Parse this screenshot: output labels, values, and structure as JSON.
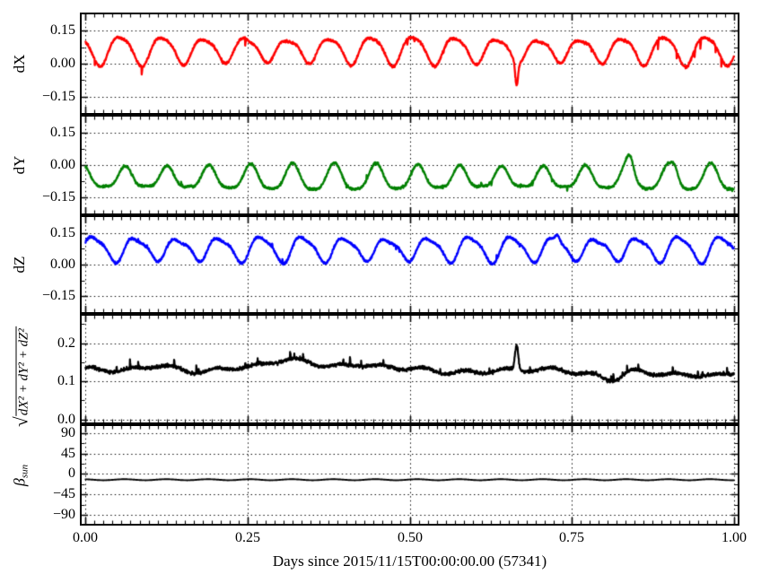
{
  "figure": {
    "background": "#ffffff",
    "frame_color": "#000000",
    "grid_color": "#000000",
    "xlabel": "Days since 2015/11/15T00:00:00.00 (57341)"
  },
  "chart_data": {
    "type": "line",
    "title": "",
    "xlabel": "Days since 2015/11/15T00:00:00.00 (57341)",
    "x_unit": "days",
    "xlim": [
      -0.006,
      1.006
    ],
    "xticks": [
      0,
      0.25,
      0.5,
      0.75,
      1
    ],
    "xtick_labels": [
      "0.00",
      "0.25",
      "0.50",
      "0.75",
      "1.00"
    ],
    "xminor_step": 0.013889,
    "grid": true,
    "legend": "none",
    "panels": [
      {
        "key": "dX",
        "ylabel": "dX",
        "color": "#ff0000",
        "linewidth": 2.3,
        "ylim": [
          -0.2254,
          0.2254
        ],
        "yticks": [
          0.15,
          0.0,
          -0.15
        ],
        "ytick_labels": [
          "0.15",
          "0.00",
          "−0.15"
        ],
        "yminors": [
          0.075,
          -0.075
        ],
        "signal": {
          "seed": 101,
          "n": 2600,
          "mean": 0.063,
          "carrier_amp": 0.057,
          "freq": 15.5,
          "phase": 2.6,
          "h2_amp": 0.012,
          "h2_phase": 1.2,
          "mod_depth": 0.16,
          "mod_freq": 2.3,
          "mod_phase": 0.7,
          "slow": [],
          "noise": 0.0055,
          "impulse_prob": 0.006,
          "impulse_lo": -0.045,
          "impulse_hi": -0.012,
          "events": [
            [
              0.665,
              -0.105,
              0.003
            ],
            [
              0.245,
              0.015,
              0.008
            ]
          ],
          "clamp": [
            -0.2,
            0.2
          ]
        }
      },
      {
        "key": "dY",
        "ylabel": "dY",
        "color": "#008000",
        "linewidth": 2.3,
        "ylim": [
          -0.2254,
          0.2254
        ],
        "yticks": [
          0.15,
          0.0,
          -0.15
        ],
        "ytick_labels": [
          "0.15",
          "0.00",
          "−0.15"
        ],
        "yminors": [
          0.075,
          -0.075
        ],
        "signal": {
          "seed": 202,
          "n": 2600,
          "mean": -0.064,
          "carrier_amp": 0.054,
          "freq": 15.5,
          "phase": 1.9,
          "h2_amp": 0.013,
          "h2_phase": -1.6,
          "mod_depth": 0.14,
          "mod_freq": 1.7,
          "mod_phase": 3.9,
          "slow": [],
          "noise": 0.0055,
          "impulse_prob": 0.005,
          "impulse_lo": -0.022,
          "impulse_hi": 0.022,
          "events": [
            [
              0.84,
              0.05,
              0.007
            ],
            [
              0.91,
              0.028,
              0.006
            ]
          ],
          "clamp": [
            -0.2,
            0.2
          ]
        }
      },
      {
        "key": "dZ",
        "ylabel": "dZ",
        "color": "#0000ff",
        "linewidth": 2.3,
        "ylim": [
          -0.2254,
          0.2254
        ],
        "yticks": [
          0.15,
          0.0,
          -0.15
        ],
        "ytick_labels": [
          "0.15",
          "0.00",
          "−0.15"
        ],
        "yminors": [
          0.075,
          -0.075
        ],
        "signal": {
          "seed": 303,
          "n": 2600,
          "mean": 0.075,
          "carrier_amp": 0.054,
          "freq": 15.5,
          "phase": 0.3,
          "h2_amp": 0.014,
          "h2_phase": 0.8,
          "mod_depth": 0.13,
          "mod_freq": 3.1,
          "mod_phase": 2.0,
          "slow": [],
          "noise": 0.0055,
          "impulse_prob": 0.005,
          "impulse_lo": -0.022,
          "impulse_hi": 0.022,
          "events": [
            [
              0.728,
              0.035,
              0.005
            ]
          ],
          "clamp": [
            -0.2,
            0.2
          ]
        }
      },
      {
        "key": "magnitude",
        "ylabel_radical": "√",
        "ylabel_expr": "dX² + dY² + dZ²",
        "color": "#000000",
        "linewidth": 2.2,
        "ylim": [
          -0.008,
          0.272
        ],
        "yticks": [
          0.2,
          0.1,
          0.0
        ],
        "ytick_labels": [
          "0.2",
          "0.1",
          "0.0"
        ],
        "yminors": [
          0.25,
          0.15,
          0.05
        ],
        "signal": {
          "seed": 404,
          "n": 2600,
          "mean": 0.1315,
          "carrier_amp": 0.0045,
          "freq": 15.5,
          "phase": 1.0,
          "h2_amp": 0,
          "h2_phase": 0,
          "mod_depth": 0,
          "mod_freq": 0,
          "mod_phase": 0,
          "slow": [
            [
              0.011,
              1.05,
              -0.4
            ],
            [
              0.008,
              2.6,
              2.0
            ],
            [
              0.006,
              5.3,
              4.2
            ],
            [
              0.0035,
              9.7,
              1.0
            ]
          ],
          "noise": 0.0045,
          "impulse_prob": 0.012,
          "impulse_lo": 0.006,
          "impulse_hi": 0.02,
          "events": [
            [
              0.665,
              0.066,
              0.0035
            ],
            [
              0.815,
              -0.02,
              0.02
            ],
            [
              0.58,
              0.012,
              0.03
            ]
          ],
          "clamp": [
            0.09,
            0.28
          ]
        }
      },
      {
        "key": "beta_sun",
        "ylabel_main": "β",
        "ylabel_sub": "sun",
        "color": "#000000",
        "linewidth": 1.9,
        "ylim": [
          -110,
          106
        ],
        "yticks": [
          90,
          45,
          0,
          -45,
          -90
        ],
        "ytick_labels": [
          "90",
          "45",
          "0",
          "−45",
          "−90"
        ],
        "yminors": [
          67.5,
          22.5,
          -22.5,
          -67.5
        ],
        "signal": {
          "seed": 505,
          "n": 2600,
          "mean": -12.6,
          "carrier_amp": 1.15,
          "freq": 15.5,
          "phase": 2.0,
          "h2_amp": 0,
          "h2_phase": 0,
          "mod_depth": 0,
          "mod_freq": 0,
          "mod_phase": 0,
          "slow": [],
          "noise": 0.12,
          "impulse_prob": 0,
          "impulse_lo": 0,
          "impulse_hi": 0,
          "events": [],
          "clamp": [
            -90,
            90
          ]
        }
      }
    ]
  }
}
